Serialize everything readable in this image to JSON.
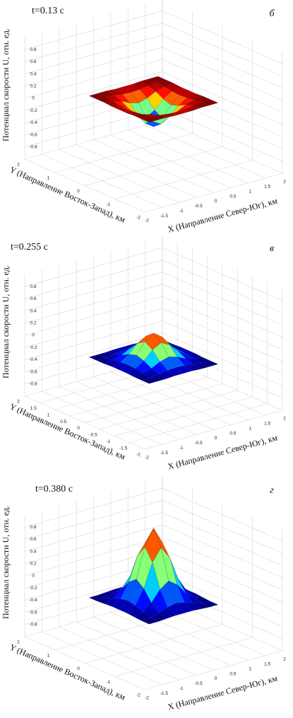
{
  "chart_data": [
    {
      "type": "surface",
      "title": "t=0.13 с",
      "panel_label": "б",
      "zlabel": "Потенциал скорости U, отн. ед.",
      "ylabel": "Y (Направление Восток-Запад), км",
      "xlabel": "X (Направление Север-Юг), км",
      "colormap": "jet",
      "grid": true,
      "xlim": [
        -2,
        2
      ],
      "ylim": [
        -2,
        2
      ],
      "zlim": [
        -1,
        1
      ],
      "xticks": [
        -2,
        -1.5,
        -1,
        -0.5,
        0,
        0.5,
        1,
        1.5,
        2
      ],
      "yticks": [
        -2,
        -1,
        0,
        1,
        2
      ],
      "zticks": [
        -0.8,
        -0.6,
        -0.4,
        -0.2,
        0,
        0.2,
        0.4,
        0.6,
        0.8
      ],
      "x": [
        -1,
        -0.75,
        -0.5,
        -0.25,
        0,
        0.25,
        0.5,
        0.75,
        1
      ],
      "y": [
        -1,
        -0.75,
        -0.5,
        -0.25,
        0,
        0.25,
        0.5,
        0.75,
        1
      ],
      "z": [
        [
          0.1,
          0.1,
          0.1,
          0.09,
          0.09,
          0.09,
          0.1,
          0.1,
          0.1
        ],
        [
          0.1,
          0.1,
          0.08,
          0.06,
          0.05,
          0.06,
          0.08,
          0.1,
          0.1
        ],
        [
          0.1,
          0.08,
          0.04,
          -0.03,
          -0.07,
          -0.03,
          0.04,
          0.08,
          0.1
        ],
        [
          0.09,
          0.06,
          -0.03,
          -0.17,
          -0.25,
          -0.17,
          -0.03,
          0.06,
          0.09
        ],
        [
          0.09,
          0.05,
          -0.07,
          -0.25,
          -0.35,
          -0.25,
          -0.07,
          0.05,
          0.09
        ],
        [
          0.09,
          0.06,
          -0.03,
          -0.17,
          -0.25,
          -0.17,
          -0.03,
          0.06,
          0.09
        ],
        [
          0.1,
          0.08,
          0.04,
          -0.03,
          -0.07,
          -0.03,
          0.04,
          0.08,
          0.1
        ],
        [
          0.1,
          0.1,
          0.08,
          0.06,
          0.05,
          0.06,
          0.08,
          0.1,
          0.1
        ],
        [
          0.1,
          0.1,
          0.1,
          0.09,
          0.09,
          0.09,
          0.1,
          0.1,
          0.1
        ]
      ]
    },
    {
      "type": "surface",
      "title": "t=0.255 с",
      "panel_label": "в",
      "zlabel": "Потенциал скорости U, отн. ед.",
      "ylabel": "Y (Направление Восток-Запад), км",
      "xlabel": "X (Направление Север-Юг), км",
      "colormap": "jet",
      "grid": true,
      "xlim": [
        -2,
        2
      ],
      "ylim": [
        -2,
        2
      ],
      "zlim": [
        -1,
        1
      ],
      "xticks": [
        -2,
        -1.5,
        -1,
        -0.5,
        0,
        0.5,
        1,
        1.5,
        2
      ],
      "yticks": [
        -2,
        -1.5,
        -1,
        -0.5,
        0,
        0.5,
        1,
        1.5,
        2
      ],
      "zticks": [
        -0.8,
        -0.6,
        -0.4,
        -0.2,
        0,
        0.2,
        0.4,
        0.6,
        0.8
      ],
      "x": [
        -1,
        -0.75,
        -0.5,
        -0.25,
        0,
        0.25,
        0.5,
        0.75,
        1
      ],
      "y": [
        -1,
        -0.75,
        -0.5,
        -0.25,
        0,
        0.25,
        0.5,
        0.75,
        1
      ],
      "z": [
        [
          -0.3,
          -0.3,
          -0.3,
          -0.29,
          -0.29,
          -0.29,
          -0.3,
          -0.3,
          -0.3
        ],
        [
          -0.3,
          -0.3,
          -0.28,
          -0.26,
          -0.25,
          -0.26,
          -0.28,
          -0.3,
          -0.3
        ],
        [
          -0.3,
          -0.28,
          -0.24,
          -0.17,
          -0.13,
          -0.17,
          -0.24,
          -0.28,
          -0.3
        ],
        [
          -0.29,
          -0.26,
          -0.17,
          -0.03,
          0.05,
          -0.03,
          -0.17,
          -0.26,
          -0.29
        ],
        [
          -0.29,
          -0.25,
          -0.13,
          0.05,
          0.15,
          0.05,
          -0.13,
          -0.25,
          -0.29
        ],
        [
          -0.29,
          -0.26,
          -0.17,
          -0.03,
          0.05,
          -0.03,
          -0.17,
          -0.26,
          -0.29
        ],
        [
          -0.3,
          -0.28,
          -0.24,
          -0.17,
          -0.13,
          -0.17,
          -0.24,
          -0.28,
          -0.3
        ],
        [
          -0.3,
          -0.3,
          -0.28,
          -0.26,
          -0.25,
          -0.26,
          -0.28,
          -0.3,
          -0.3
        ],
        [
          -0.3,
          -0.3,
          -0.3,
          -0.29,
          -0.29,
          -0.29,
          -0.3,
          -0.3,
          -0.3
        ]
      ]
    },
    {
      "type": "surface",
      "title": "t=0.380 с",
      "panel_label": "г",
      "zlabel": "Потенциал скорости U, отн. ед.",
      "ylabel": "Y (Направление Восток-Запад), км",
      "xlabel": "X (Направление Север-Юг), км",
      "colormap": "jet",
      "grid": true,
      "xlim": [
        -2,
        2
      ],
      "ylim": [
        -2,
        2
      ],
      "zlim": [
        -1,
        1
      ],
      "xticks": [
        -2,
        -1.5,
        -1,
        -0.5,
        0,
        0.5,
        1,
        1.5,
        2
      ],
      "yticks": [
        -2,
        -1,
        0,
        1,
        2
      ],
      "zticks": [
        -0.8,
        -0.6,
        -0.4,
        -0.2,
        0,
        0.2,
        0.4,
        0.6,
        0.8
      ],
      "x": [
        -1,
        -0.75,
        -0.5,
        -0.25,
        0,
        0.25,
        0.5,
        0.75,
        1
      ],
      "y": [
        -1,
        -0.75,
        -0.5,
        -0.25,
        0,
        0.25,
        0.5,
        0.75,
        1
      ],
      "z": [
        [
          -0.3,
          -0.3,
          -0.29,
          -0.28,
          -0.28,
          -0.28,
          -0.29,
          -0.3,
          -0.3
        ],
        [
          -0.3,
          -0.29,
          -0.25,
          -0.2,
          -0.17,
          -0.2,
          -0.25,
          -0.29,
          -0.3
        ],
        [
          -0.29,
          -0.25,
          -0.14,
          0.04,
          0.14,
          0.04,
          -0.14,
          -0.25,
          -0.29
        ],
        [
          -0.28,
          -0.2,
          0.04,
          0.43,
          0.63,
          0.43,
          0.04,
          -0.2,
          -0.28
        ],
        [
          -0.28,
          -0.17,
          0.14,
          0.63,
          0.9,
          0.63,
          0.14,
          -0.17,
          -0.28
        ],
        [
          -0.28,
          -0.2,
          0.04,
          0.43,
          0.63,
          0.43,
          0.04,
          -0.2,
          -0.28
        ],
        [
          -0.29,
          -0.25,
          -0.14,
          0.04,
          0.14,
          0.04,
          -0.14,
          -0.25,
          -0.29
        ],
        [
          -0.3,
          -0.29,
          -0.25,
          -0.2,
          -0.17,
          -0.2,
          -0.25,
          -0.29,
          -0.3
        ],
        [
          -0.3,
          -0.3,
          -0.29,
          -0.28,
          -0.28,
          -0.28,
          -0.29,
          -0.3,
          -0.3
        ]
      ]
    }
  ]
}
